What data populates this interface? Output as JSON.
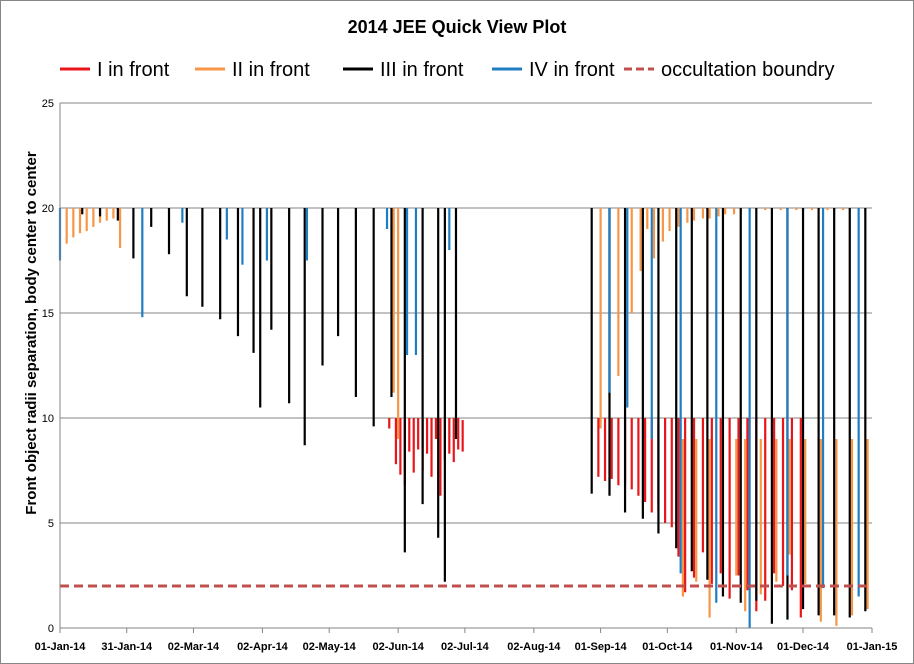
{
  "chart_data": {
    "type": "line",
    "title": "2014 JEE Quick View Plot",
    "ylabel": "Front object radii separation, body center to center",
    "xlabel": "",
    "ylim": [
      0,
      25
    ],
    "yticks": [
      "0",
      "5",
      "10",
      "15",
      "20",
      "25"
    ],
    "xlim": [
      "2014-01-01",
      "2015-01-01"
    ],
    "xticks": [
      {
        "date": "2014-01-01",
        "label": "01-Jan-14"
      },
      {
        "date": "2014-01-31",
        "label": "31-Jan-14"
      },
      {
        "date": "2014-03-02",
        "label": "02-Mar-14"
      },
      {
        "date": "2014-04-02",
        "label": "02-Apr-14"
      },
      {
        "date": "2014-05-02",
        "label": "02-May-14"
      },
      {
        "date": "2014-06-02",
        "label": "02-Jun-14"
      },
      {
        "date": "2014-07-02",
        "label": "02-Jul-14"
      },
      {
        "date": "2014-08-02",
        "label": "02-Aug-14"
      },
      {
        "date": "2014-09-01",
        "label": "01-Sep-14"
      },
      {
        "date": "2014-10-01",
        "label": "01-Oct-14"
      },
      {
        "date": "2014-11-01",
        "label": "01-Nov-14"
      },
      {
        "date": "2014-12-01",
        "label": "01-Dec-14"
      },
      {
        "date": "2015-01-01",
        "label": "01-Jan-15"
      }
    ],
    "grid": true,
    "legend_position": "top",
    "series": [
      {
        "name": "I in front",
        "color": "#e8161b",
        "style": "solid",
        "events": [
          [
            "2014-05-29",
            9.5,
            10
          ],
          [
            "2014-06-01",
            7.8,
            10
          ],
          [
            "2014-06-03",
            7.3,
            10
          ],
          [
            "2014-06-05",
            6.8,
            10
          ],
          [
            "2014-06-07",
            8.4,
            10
          ],
          [
            "2014-06-09",
            7.4,
            10
          ],
          [
            "2014-06-11",
            8.5,
            10
          ],
          [
            "2014-06-13",
            7.5,
            10
          ],
          [
            "2014-06-15",
            8.3,
            10
          ],
          [
            "2014-06-17",
            7.2,
            10
          ],
          [
            "2014-06-19",
            9.0,
            10
          ],
          [
            "2014-06-21",
            6.3,
            10
          ],
          [
            "2014-06-23",
            8.0,
            10
          ],
          [
            "2014-06-25",
            8.3,
            10
          ],
          [
            "2014-06-27",
            7.9,
            10
          ],
          [
            "2014-06-29",
            8.5,
            10
          ],
          [
            "2014-07-01",
            8.4,
            9.9
          ],
          [
            "2014-08-31",
            7.2,
            10
          ],
          [
            "2014-09-03",
            7.0,
            10
          ],
          [
            "2014-09-06",
            7.1,
            10
          ],
          [
            "2014-09-09",
            6.8,
            10
          ],
          [
            "2014-09-12",
            6.9,
            10
          ],
          [
            "2014-09-15",
            6.6,
            10
          ],
          [
            "2014-09-18",
            6.3,
            10
          ],
          [
            "2014-09-21",
            6.0,
            10
          ],
          [
            "2014-09-24",
            5.5,
            10
          ],
          [
            "2014-09-27",
            5.6,
            10
          ],
          [
            "2014-09-30",
            5.0,
            10
          ],
          [
            "2014-10-03",
            4.8,
            10
          ],
          [
            "2014-10-06",
            3.4,
            10
          ],
          [
            "2014-10-09",
            1.7,
            10
          ],
          [
            "2014-10-13",
            2.4,
            10
          ],
          [
            "2014-10-17",
            3.6,
            10
          ],
          [
            "2014-10-21",
            2.1,
            10
          ],
          [
            "2014-10-25",
            2.6,
            10
          ],
          [
            "2014-10-29",
            1.4,
            10
          ],
          [
            "2014-11-02",
            2.5,
            10
          ],
          [
            "2014-11-06",
            1.8,
            10
          ],
          [
            "2014-11-10",
            0.8,
            10
          ],
          [
            "2014-11-14",
            1.3,
            10
          ],
          [
            "2014-11-18",
            2.6,
            10
          ],
          [
            "2014-11-22",
            2.0,
            10
          ],
          [
            "2014-11-26",
            1.8,
            10
          ],
          [
            "2014-11-30",
            0.5,
            10
          ]
        ]
      },
      {
        "name": "II in front",
        "color": "#f79646",
        "style": "solid",
        "events": [
          [
            "2014-01-04",
            18.3,
            20
          ],
          [
            "2014-01-07",
            18.6,
            20
          ],
          [
            "2014-01-10",
            18.8,
            20
          ],
          [
            "2014-01-13",
            18.9,
            20
          ],
          [
            "2014-01-16",
            19.1,
            20
          ],
          [
            "2014-01-19",
            19.3,
            20
          ],
          [
            "2014-01-22",
            19.4,
            20
          ],
          [
            "2014-01-25",
            19.5,
            20
          ],
          [
            "2014-01-28",
            18.1,
            20
          ],
          [
            "2014-05-31",
            11.2,
            20
          ],
          [
            "2014-06-02",
            9.0,
            20
          ],
          [
            "2014-09-01",
            9.5,
            20
          ],
          [
            "2014-09-05",
            11.0,
            20
          ],
          [
            "2014-09-09",
            12.0,
            20
          ],
          [
            "2014-09-12",
            13.0,
            20
          ],
          [
            "2014-09-15",
            15.0,
            20
          ],
          [
            "2014-09-19",
            17.0,
            20
          ],
          [
            "2014-09-22",
            19.0,
            20
          ],
          [
            "2014-09-25",
            17.6,
            20
          ],
          [
            "2014-09-29",
            18.4,
            20
          ],
          [
            "2014-10-02",
            18.9,
            20
          ],
          [
            "2014-10-06",
            19.1,
            20
          ],
          [
            "2014-10-10",
            19.3,
            20
          ],
          [
            "2014-10-13",
            19.4,
            20
          ],
          [
            "2014-10-17",
            19.5,
            20
          ],
          [
            "2014-10-20",
            19.5,
            20
          ],
          [
            "2014-10-24",
            19.6,
            20
          ],
          [
            "2014-10-27",
            19.7,
            20
          ],
          [
            "2014-10-31",
            19.7,
            20
          ],
          [
            "2014-11-03",
            19.8,
            20
          ],
          [
            "2014-11-07",
            19.8,
            20
          ],
          [
            "2014-11-10",
            19.9,
            20
          ],
          [
            "2014-11-14",
            19.9,
            20
          ],
          [
            "2014-11-17",
            19.9,
            20
          ],
          [
            "2014-11-21",
            19.9,
            20
          ],
          [
            "2014-11-24",
            19.9,
            20
          ],
          [
            "2014-11-28",
            19.9,
            20
          ],
          [
            "2014-12-01",
            19.9,
            20
          ],
          [
            "2014-12-05",
            19.9,
            20
          ],
          [
            "2014-12-08",
            19.9,
            20
          ],
          [
            "2014-12-12",
            19.9,
            20
          ],
          [
            "2014-12-15",
            19.9,
            20
          ],
          [
            "2014-12-19",
            19.9,
            20
          ],
          [
            "2014-12-22",
            19.9,
            20
          ],
          [
            "2014-12-26",
            19.9,
            20
          ],
          [
            "2014-12-29",
            19.9,
            20
          ],
          [
            "2014-10-08",
            1.5,
            9
          ],
          [
            "2014-10-14",
            2.2,
            9
          ],
          [
            "2014-10-20",
            0.5,
            9
          ],
          [
            "2014-10-26",
            2.6,
            9
          ],
          [
            "2014-11-01",
            2.5,
            9
          ],
          [
            "2014-11-05",
            0.8,
            9
          ],
          [
            "2014-11-12",
            1.6,
            9
          ],
          [
            "2014-11-19",
            2.2,
            9
          ],
          [
            "2014-11-25",
            3.5,
            9
          ],
          [
            "2014-12-02",
            2.1,
            9
          ],
          [
            "2014-12-09",
            0.3,
            9
          ],
          [
            "2014-12-16",
            0.1,
            9
          ],
          [
            "2014-12-23",
            0.6,
            9
          ],
          [
            "2014-12-30",
            0.9,
            9
          ]
        ]
      },
      {
        "name": "III in front",
        "color": "#000000",
        "style": "solid",
        "events": [
          [
            "2014-01-11",
            19.7,
            20
          ],
          [
            "2014-01-19",
            19.6,
            20
          ],
          [
            "2014-01-27",
            19.4,
            20
          ],
          [
            "2014-02-03",
            17.6,
            20
          ],
          [
            "2014-02-11",
            19.1,
            20
          ],
          [
            "2014-02-19",
            17.8,
            20
          ],
          [
            "2014-02-27",
            15.8,
            20
          ],
          [
            "2014-03-06",
            15.3,
            20
          ],
          [
            "2014-03-14",
            14.7,
            20
          ],
          [
            "2014-03-22",
            13.9,
            20
          ],
          [
            "2014-03-29",
            13.1,
            20
          ],
          [
            "2014-04-01",
            10.5,
            20
          ],
          [
            "2014-04-06",
            14.2,
            20
          ],
          [
            "2014-04-14",
            10.7,
            20
          ],
          [
            "2014-04-21",
            8.7,
            20
          ],
          [
            "2014-04-29",
            12.5,
            20
          ],
          [
            "2014-05-06",
            13.9,
            20
          ],
          [
            "2014-05-14",
            11.0,
            20
          ],
          [
            "2014-05-22",
            9.6,
            20
          ],
          [
            "2014-05-30",
            11.0,
            20
          ],
          [
            "2014-06-05",
            3.6,
            20
          ],
          [
            "2014-06-13",
            5.9,
            20
          ],
          [
            "2014-06-20",
            4.3,
            20
          ],
          [
            "2014-06-23",
            2.2,
            20
          ],
          [
            "2014-06-28",
            9.0,
            20
          ],
          [
            "2014-08-28",
            6.4,
            20
          ],
          [
            "2014-09-05",
            6.3,
            20
          ],
          [
            "2014-09-12",
            5.5,
            20
          ],
          [
            "2014-09-20",
            5.2,
            20
          ],
          [
            "2014-09-27",
            4.5,
            20
          ],
          [
            "2014-10-05",
            3.8,
            20
          ],
          [
            "2014-10-12",
            2.7,
            20
          ],
          [
            "2014-10-19",
            2.3,
            20
          ],
          [
            "2014-10-26",
            1.5,
            20
          ],
          [
            "2014-11-03",
            1.2,
            20
          ],
          [
            "2014-11-10",
            1.3,
            20
          ],
          [
            "2014-11-17",
            0.2,
            20
          ],
          [
            "2014-11-24",
            0.4,
            20
          ],
          [
            "2014-12-01",
            0.9,
            20
          ],
          [
            "2014-12-08",
            0.6,
            20
          ],
          [
            "2014-12-15",
            0.6,
            20
          ],
          [
            "2014-12-22",
            0.5,
            20
          ],
          [
            "2014-12-29",
            0.8,
            20
          ]
        ]
      },
      {
        "name": "IV in front",
        "color": "#1f7ec3",
        "style": "solid",
        "events": [
          [
            "2014-01-01",
            17.5,
            20
          ],
          [
            "2014-02-07",
            14.8,
            20
          ],
          [
            "2014-02-25",
            19.3,
            20
          ],
          [
            "2014-03-17",
            18.5,
            20
          ],
          [
            "2014-03-24",
            17.3,
            20
          ],
          [
            "2014-04-04",
            17.5,
            20
          ],
          [
            "2014-04-22",
            17.5,
            20
          ],
          [
            "2014-05-28",
            19.0,
            20
          ],
          [
            "2014-06-06",
            13.0,
            20
          ],
          [
            "2014-06-10",
            13.0,
            20
          ],
          [
            "2014-06-25",
            18.0,
            20
          ],
          [
            "2014-09-05",
            11.2,
            20
          ],
          [
            "2014-09-13",
            10.5,
            20
          ],
          [
            "2014-09-24",
            9.0,
            20
          ],
          [
            "2014-10-07",
            2.6,
            20
          ],
          [
            "2014-10-23",
            1.2,
            20
          ],
          [
            "2014-11-07",
            0.0,
            20
          ],
          [
            "2014-11-24",
            2.5,
            20
          ],
          [
            "2014-12-10",
            1.9,
            20
          ],
          [
            "2014-12-26",
            1.5,
            20
          ]
        ]
      },
      {
        "name": "occultation boundry",
        "color": "#c0504d",
        "style": "dashed",
        "x": [
          "2014-01-01",
          "2015-01-01"
        ],
        "y": [
          2,
          2
        ]
      }
    ]
  }
}
